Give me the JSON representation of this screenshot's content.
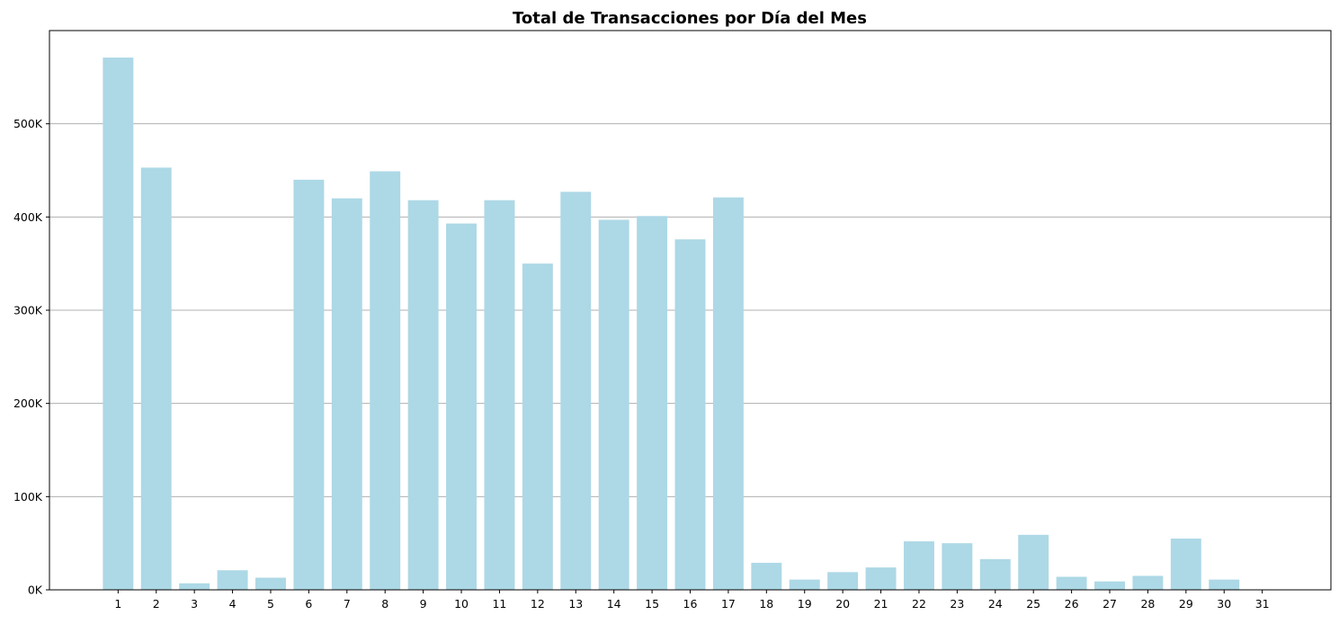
{
  "chart_data": {
    "type": "bar",
    "title": "Total de Transacciones por Día del Mes",
    "xlabel": "",
    "ylabel": "",
    "categories": [
      "1",
      "2",
      "3",
      "4",
      "5",
      "6",
      "7",
      "8",
      "9",
      "10",
      "11",
      "12",
      "13",
      "14",
      "15",
      "16",
      "17",
      "18",
      "19",
      "20",
      "21",
      "22",
      "23",
      "24",
      "25",
      "26",
      "27",
      "28",
      "29",
      "30",
      "31"
    ],
    "values": [
      571000,
      453000,
      7000,
      21000,
      13000,
      440000,
      420000,
      449000,
      418000,
      393000,
      418000,
      350000,
      427000,
      397000,
      401000,
      376000,
      421000,
      29000,
      11000,
      19000,
      24000,
      52000,
      50000,
      33000,
      59000,
      14000,
      9000,
      15000,
      55000,
      11000,
      0
    ],
    "ylim": [
      0,
      600000
    ],
    "yticks": [
      0,
      100000,
      200000,
      300000,
      400000,
      500000
    ],
    "ytick_labels": [
      "0K",
      "100K",
      "200K",
      "300K",
      "400K",
      "500K"
    ],
    "grid": "horizontal",
    "bar_color": "#add8e6",
    "grid_color": "#b0b0b0"
  }
}
